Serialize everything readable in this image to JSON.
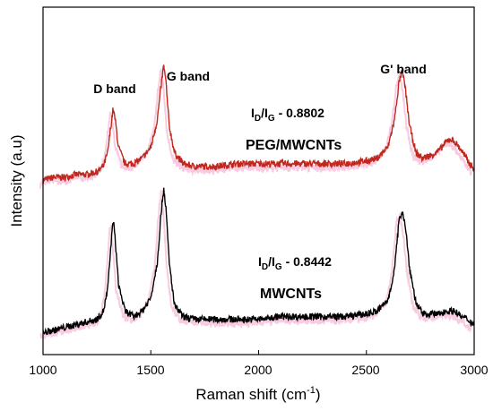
{
  "chart_data": {
    "type": "line",
    "title": "",
    "xlabel": "Raman shift (cm",
    "xlabel_sup": "-1",
    "xlabel_close": ")",
    "ylabel": "Intensity (a.u)",
    "xlim": [
      1000,
      3000
    ],
    "xticks": [
      1000,
      1500,
      2000,
      2500,
      3000
    ],
    "xtick_labels": [
      "1000",
      "1500",
      "2000",
      "2500",
      "3000"
    ],
    "y_ticks_shown": false,
    "grid": false,
    "legend": "none",
    "series": [
      {
        "name": "PEG/MWCNTs",
        "color": "#c0281e",
        "shadow_color": "#f4a0c8",
        "baseline": 0.58,
        "x": [
          1000,
          1050,
          1100,
          1150,
          1200,
          1250,
          1280,
          1300,
          1315,
          1325,
          1335,
          1350,
          1380,
          1420,
          1460,
          1500,
          1530,
          1550,
          1560,
          1570,
          1585,
          1610,
          1650,
          1700,
          1800,
          1900,
          2000,
          2100,
          2200,
          2300,
          2400,
          2500,
          2550,
          2600,
          2630,
          2650,
          2665,
          2680,
          2700,
          2730,
          2760,
          2800,
          2840,
          2870,
          2890,
          2910,
          2940,
          2970,
          3000
        ],
        "y": [
          0.58,
          0.59,
          0.59,
          0.6,
          0.6,
          0.61,
          0.63,
          0.68,
          0.78,
          0.84,
          0.8,
          0.7,
          0.64,
          0.64,
          0.66,
          0.7,
          0.8,
          0.94,
          1.0,
          0.94,
          0.78,
          0.68,
          0.64,
          0.63,
          0.63,
          0.64,
          0.64,
          0.64,
          0.64,
          0.64,
          0.64,
          0.65,
          0.66,
          0.7,
          0.8,
          0.93,
          0.98,
          0.92,
          0.78,
          0.68,
          0.66,
          0.67,
          0.69,
          0.72,
          0.73,
          0.72,
          0.69,
          0.65,
          0.62
        ]
      },
      {
        "name": "MWCNTs",
        "color": "#000000",
        "shadow_color": "#f4a0c8",
        "baseline": 0.05,
        "x": [
          1000,
          1050,
          1100,
          1150,
          1200,
          1250,
          1280,
          1300,
          1315,
          1325,
          1335,
          1350,
          1380,
          1420,
          1460,
          1500,
          1530,
          1550,
          1560,
          1570,
          1585,
          1610,
          1650,
          1700,
          1800,
          1900,
          2000,
          2100,
          2200,
          2300,
          2400,
          2500,
          2550,
          2600,
          2630,
          2650,
          2665,
          2680,
          2700,
          2730,
          2760,
          2800,
          2840,
          2870,
          2890,
          2910,
          2940,
          2970,
          3000
        ],
        "y": [
          0.02,
          0.03,
          0.04,
          0.05,
          0.06,
          0.07,
          0.1,
          0.18,
          0.34,
          0.44,
          0.36,
          0.2,
          0.1,
          0.08,
          0.1,
          0.15,
          0.28,
          0.48,
          0.55,
          0.48,
          0.28,
          0.12,
          0.08,
          0.07,
          0.07,
          0.07,
          0.07,
          0.08,
          0.08,
          0.08,
          0.08,
          0.09,
          0.1,
          0.14,
          0.25,
          0.42,
          0.47,
          0.42,
          0.26,
          0.13,
          0.09,
          0.09,
          0.09,
          0.1,
          0.1,
          0.1,
          0.08,
          0.07,
          0.05
        ]
      }
    ],
    "annotations": {
      "d_band": "D band",
      "g_band": "G band",
      "g_prime_band": "G' band",
      "ratio_top_prefix": "I",
      "ratio_top_sub1": "D",
      "ratio_top_slash": "/I",
      "ratio_top_sub2": "G",
      "ratio_top_value": " - 0.8802",
      "label_top": "PEG/MWCNTs",
      "ratio_bottom_prefix": "I",
      "ratio_bottom_sub1": "D",
      "ratio_bottom_slash": "/I",
      "ratio_bottom_sub2": "G",
      "ratio_bottom_value": " - 0.8442",
      "label_bottom": "MWCNTs"
    }
  }
}
